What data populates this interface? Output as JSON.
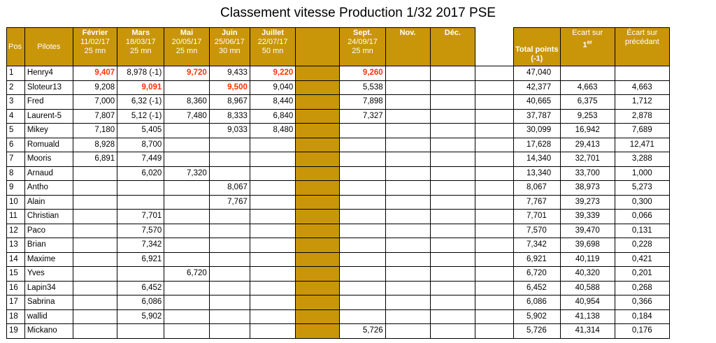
{
  "title": "Classement vitesse Production 1/32 2017 PSE",
  "colors": {
    "header": "#c9960a",
    "highlight": "#ff3300"
  },
  "headers": {
    "pos": "Pos",
    "pilotes": "Pilotes",
    "races": [
      {
        "month": "Février",
        "date": "11/02/17",
        "dur": "25 mn"
      },
      {
        "month": "Mars",
        "date": "18/03/17",
        "dur": "25 mn"
      },
      {
        "month": "Mai",
        "date": "20/05/17",
        "dur": "25 mn"
      },
      {
        "month": "Juin",
        "date": "25/06/17",
        "dur": "30 mn"
      },
      {
        "month": "Juillet",
        "date": "22/07/17",
        "dur": "50 mn"
      },
      {
        "month": "",
        "date": "",
        "dur": ""
      },
      {
        "month": "Sept.",
        "date": "24/09/17",
        "dur": "25 mn"
      },
      {
        "month": "Nov.",
        "date": "",
        "dur": ""
      },
      {
        "month": "Déc.",
        "date": "",
        "dur": ""
      }
    ],
    "total": "Total points",
    "total_sub": "(-1)",
    "ecart1": "Ecart sur",
    "ecart1_sub": "1",
    "ecart1_sup": "er",
    "ecart2": "Écart sur",
    "ecart2_sub": "précédant"
  },
  "rows": [
    {
      "pos": "1",
      "name": "Henry4",
      "r": [
        "9,407",
        "8,978 (-1)",
        "9,720",
        "9,433",
        "9,220",
        "",
        "9,260",
        "",
        ""
      ],
      "red": [
        0,
        2,
        4,
        6
      ],
      "total": "47,040",
      "e1": "",
      "e2": ""
    },
    {
      "pos": "2",
      "name": "Sloteur13",
      "r": [
        "9,208",
        "9,091",
        "",
        "9,500",
        "9,040",
        "",
        "5,538",
        "",
        ""
      ],
      "red": [
        1,
        3
      ],
      "total": "42,377",
      "e1": "4,663",
      "e2": "4,663"
    },
    {
      "pos": "3",
      "name": "Fred",
      "r": [
        "7,000",
        "6,32 (-1)",
        "8,360",
        "8,967",
        "8,440",
        "",
        "7,898",
        "",
        ""
      ],
      "red": [],
      "total": "40,665",
      "e1": "6,375",
      "e2": "1,712"
    },
    {
      "pos": "4",
      "name": "Laurent-5",
      "r": [
        "7,807",
        "5,12 (-1)",
        "7,480",
        "8,333",
        "6,840",
        "",
        "7,327",
        "",
        ""
      ],
      "red": [],
      "total": "37,787",
      "e1": "9,253",
      "e2": "2,878"
    },
    {
      "pos": "5",
      "name": "Mikey",
      "r": [
        "7,180",
        "5,405",
        "",
        "9,033",
        "8,480",
        "",
        "",
        "",
        ""
      ],
      "red": [],
      "total": "30,099",
      "e1": "16,942",
      "e2": "7,689"
    },
    {
      "pos": "6",
      "name": "Romuald",
      "r": [
        "8,928",
        "8,700",
        "",
        "",
        "",
        "",
        "",
        "",
        ""
      ],
      "red": [],
      "total": "17,628",
      "e1": "29,413",
      "e2": "12,471"
    },
    {
      "pos": "7",
      "name": "Mooris",
      "r": [
        "6,891",
        "7,449",
        "",
        "",
        "",
        "",
        "",
        "",
        ""
      ],
      "red": [],
      "total": "14,340",
      "e1": "32,701",
      "e2": "3,288"
    },
    {
      "pos": "8",
      "name": "Arnaud",
      "r": [
        "",
        "6,020",
        "7,320",
        "",
        "",
        "",
        "",
        "",
        ""
      ],
      "red": [],
      "total": "13,340",
      "e1": "33,700",
      "e2": "1,000"
    },
    {
      "pos": "9",
      "name": "Antho",
      "r": [
        "",
        "",
        "",
        "8,067",
        "",
        "",
        "",
        "",
        ""
      ],
      "red": [],
      "total": "8,067",
      "e1": "38,973",
      "e2": "5,273"
    },
    {
      "pos": "10",
      "name": "Alain",
      "r": [
        "",
        "",
        "",
        "7,767",
        "",
        "",
        "",
        "",
        ""
      ],
      "red": [],
      "total": "7,767",
      "e1": "39,273",
      "e2": "0,300"
    },
    {
      "pos": "11",
      "name": "Christian",
      "r": [
        "",
        "7,701",
        "",
        "",
        "",
        "",
        "",
        "",
        ""
      ],
      "red": [],
      "total": "7,701",
      "e1": "39,339",
      "e2": "0,066"
    },
    {
      "pos": "12",
      "name": "Paco",
      "r": [
        "",
        "7,570",
        "",
        "",
        "",
        "",
        "",
        "",
        ""
      ],
      "red": [],
      "total": "7,570",
      "e1": "39,470",
      "e2": "0,131"
    },
    {
      "pos": "13",
      "name": "Brian",
      "r": [
        "",
        "7,342",
        "",
        "",
        "",
        "",
        "",
        "",
        ""
      ],
      "red": [],
      "total": "7,342",
      "e1": "39,698",
      "e2": "0,228"
    },
    {
      "pos": "14",
      "name": "Maxime",
      "r": [
        "",
        "6,921",
        "",
        "",
        "",
        "",
        "",
        "",
        ""
      ],
      "red": [],
      "total": "6,921",
      "e1": "40,119",
      "e2": "0,421"
    },
    {
      "pos": "15",
      "name": "Yves",
      "r": [
        "",
        "",
        "6,720",
        "",
        "",
        "",
        "",
        "",
        ""
      ],
      "red": [],
      "total": "6,720",
      "e1": "40,320",
      "e2": "0,201"
    },
    {
      "pos": "16",
      "name": "Lapin34",
      "r": [
        "",
        "6,452",
        "",
        "",
        "",
        "",
        "",
        "",
        ""
      ],
      "red": [],
      "total": "6,452",
      "e1": "40,588",
      "e2": "0,268"
    },
    {
      "pos": "17",
      "name": "Sabrina",
      "r": [
        "",
        "6,086",
        "",
        "",
        "",
        "",
        "",
        "",
        ""
      ],
      "red": [],
      "total": "6,086",
      "e1": "40,954",
      "e2": "0,366"
    },
    {
      "pos": "18",
      "name": "wallid",
      "r": [
        "",
        "5,902",
        "",
        "",
        "",
        "",
        "",
        "",
        ""
      ],
      "red": [],
      "total": "5,902",
      "e1": "41,138",
      "e2": "0,184"
    },
    {
      "pos": "19",
      "name": "Mickano",
      "r": [
        "",
        "",
        "",
        "",
        "",
        "",
        "5,726",
        "",
        ""
      ],
      "red": [],
      "total": "5,726",
      "e1": "41,314",
      "e2": "0,176"
    }
  ]
}
